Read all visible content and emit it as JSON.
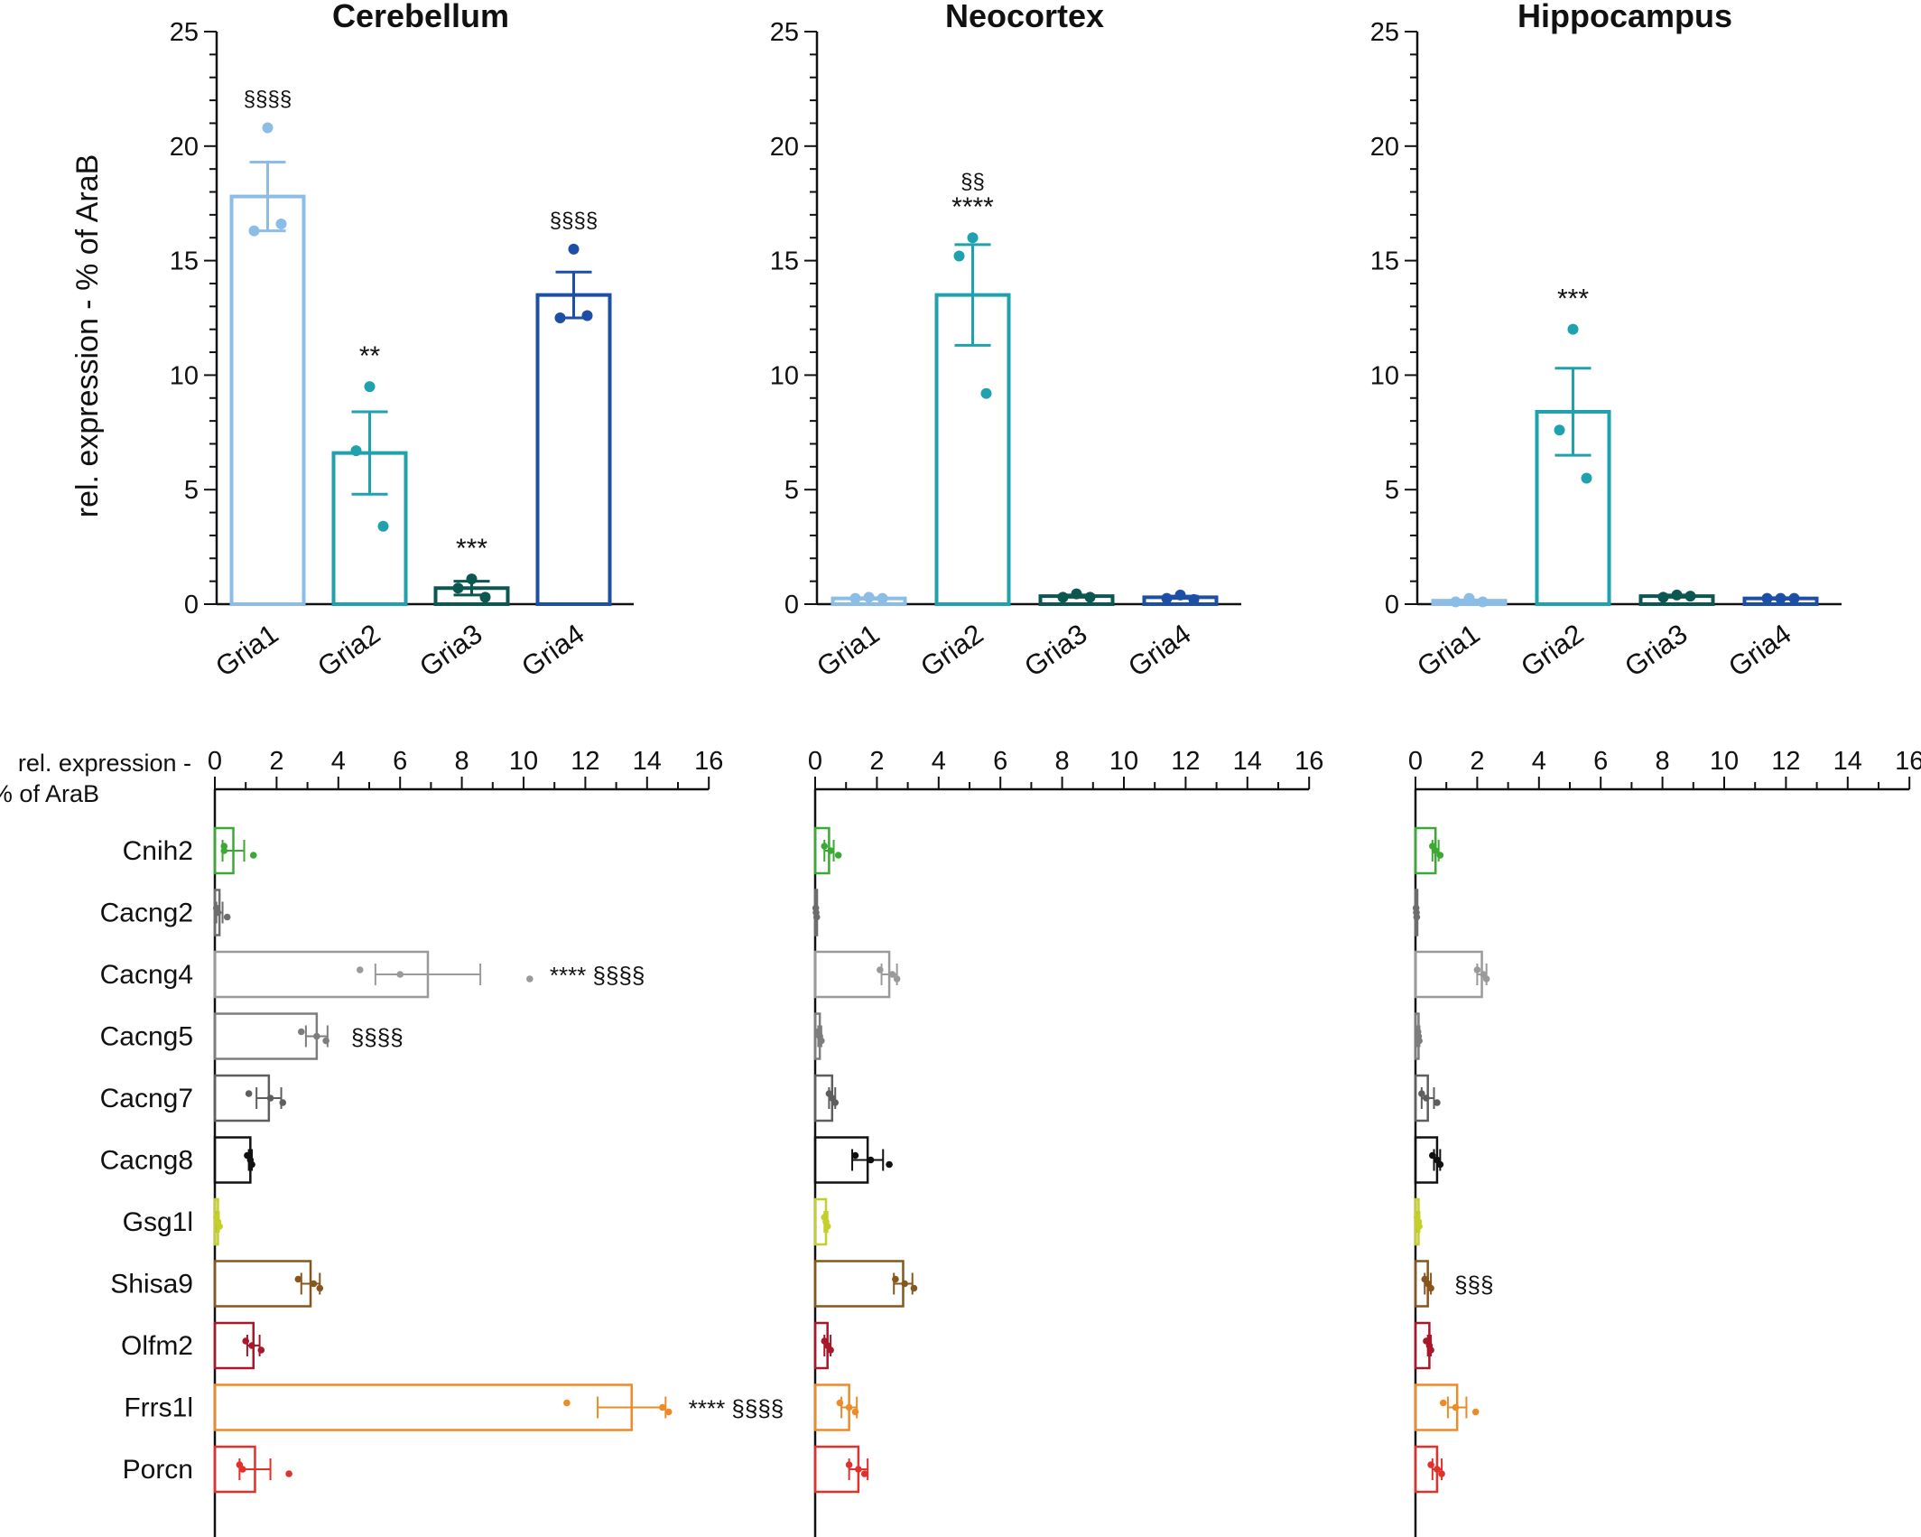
{
  "chart_data": [
    {
      "type": "bar",
      "panel": "top-left",
      "title": "Cerebellum",
      "ylabel": "rel. expression - % of AraB",
      "categories": [
        "Gria1",
        "Gria2",
        "Gria3",
        "Gria4"
      ],
      "ylim": [
        0,
        25
      ],
      "yticks": [
        "0",
        "5",
        "10",
        "15",
        "20",
        "25"
      ],
      "values": [
        17.8,
        6.6,
        0.7,
        13.5
      ],
      "error": [
        1.5,
        1.8,
        0.3,
        1.0
      ],
      "points": [
        [
          20.8,
          16.3,
          16.6
        ],
        [
          9.5,
          6.7,
          3.4
        ],
        [
          1.1,
          0.7,
          0.3
        ],
        [
          15.5,
          12.5,
          12.6
        ]
      ],
      "colors": [
        "#8cbde6",
        "#1fa2ad",
        "#0c5751",
        "#1e4fa6"
      ],
      "annotations": [
        "§§§§",
        "**",
        "***",
        "§§§§"
      ]
    },
    {
      "type": "bar",
      "panel": "top-middle",
      "title": "Neocortex",
      "categories": [
        "Gria1",
        "Gria2",
        "Gria3",
        "Gria4"
      ],
      "ylim": [
        0,
        25
      ],
      "yticks": [
        "0",
        "5",
        "10",
        "15",
        "20",
        "25"
      ],
      "values": [
        0.25,
        13.5,
        0.35,
        0.3
      ],
      "error": [
        0.03,
        2.2,
        0.05,
        0.05
      ],
      "points": [
        [
          0.3,
          0.25,
          0.25
        ],
        [
          16.0,
          15.2,
          9.2
        ],
        [
          0.45,
          0.3,
          0.3
        ],
        [
          0.4,
          0.25,
          0.2
        ]
      ],
      "colors": [
        "#8cbde6",
        "#1fa2ad",
        "#0c5751",
        "#1e4fa6"
      ],
      "annotations": [
        "",
        "§§\n****",
        "",
        ""
      ]
    },
    {
      "type": "bar",
      "panel": "top-right",
      "title": "Hippocampus",
      "categories": [
        "Gria1",
        "Gria2",
        "Gria3",
        "Gria4"
      ],
      "ylim": [
        0,
        25
      ],
      "yticks": [
        "0",
        "5",
        "10",
        "15",
        "20",
        "25"
      ],
      "values": [
        0.15,
        8.4,
        0.35,
        0.25
      ],
      "error": [
        0.03,
        1.9,
        0.05,
        0.03
      ],
      "points": [
        [
          0.25,
          0.1,
          0.1
        ],
        [
          12.0,
          7.6,
          5.5
        ],
        [
          0.4,
          0.3,
          0.35
        ],
        [
          0.25,
          0.25,
          0.25
        ]
      ],
      "colors": [
        "#8cbde6",
        "#1fa2ad",
        "#0c5751",
        "#1e4fa6"
      ],
      "annotations": [
        "",
        "***",
        "",
        ""
      ]
    },
    {
      "type": "bar",
      "orientation": "horizontal",
      "panel": "bottom-left",
      "xlabel": "rel. expression -\n% of AraB",
      "xlim": [
        0,
        16
      ],
      "xticks": [
        "0",
        "2",
        "4",
        "6",
        "8",
        "10",
        "12",
        "14",
        "16"
      ],
      "categories": [
        "Cnih2",
        "Cacng2",
        "Cacng4",
        "Cacng5",
        "Cacng7",
        "Cacng8",
        "Gsg1l",
        "Shisa9",
        "Olfm2",
        "Frrs1l",
        "Porcn"
      ],
      "values": [
        0.6,
        0.15,
        6.9,
        3.3,
        1.75,
        1.15,
        0.1,
        3.1,
        1.25,
        13.5,
        1.3
      ],
      "error": [
        0.35,
        0.1,
        1.7,
        0.35,
        0.4,
        0.05,
        0.03,
        0.3,
        0.2,
        1.1,
        0.5
      ],
      "points": [
        [
          0.3,
          0.3,
          1.25
        ],
        [
          0.05,
          0.1,
          0.4
        ],
        [
          4.7,
          6,
          10.2
        ],
        [
          2.8,
          3.3,
          3.6
        ],
        [
          1.1,
          1.8,
          2.2
        ],
        [
          1.05,
          1.15,
          1.2
        ],
        [
          0.05,
          0.1,
          0.15
        ],
        [
          2.7,
          3.2,
          3.4
        ],
        [
          1.0,
          1.2,
          1.5
        ],
        [
          11.4,
          14.5,
          14.7
        ],
        [
          0.8,
          0.9,
          2.4
        ]
      ],
      "colors": [
        "#3aaa35",
        "#6d6d6d",
        "#9a9a9a",
        "#7d7d7d",
        "#5e5e5e",
        "#111111",
        "#c5cf2a",
        "#86561c",
        "#a8172a",
        "#ee8a28",
        "#e2312c"
      ],
      "annotations": [
        "",
        "",
        "****  §§§§",
        "§§§§",
        "",
        "",
        "",
        "",
        "",
        "**** §§§§",
        ""
      ]
    },
    {
      "type": "bar",
      "orientation": "horizontal",
      "panel": "bottom-middle",
      "xlim": [
        0,
        16
      ],
      "xticks": [
        "0",
        "2",
        "4",
        "6",
        "8",
        "10",
        "12",
        "14",
        "16"
      ],
      "categories": [
        "Cnih2",
        "Cacng2",
        "Cacng4",
        "Cacng5",
        "Cacng7",
        "Cacng8",
        "Gsg1l",
        "Shisa9",
        "Olfm2",
        "Frrs1l",
        "Porcn"
      ],
      "values": [
        0.45,
        0.03,
        2.4,
        0.15,
        0.55,
        1.7,
        0.35,
        2.85,
        0.4,
        1.1,
        1.4
      ],
      "error": [
        0.15,
        0.02,
        0.25,
        0.05,
        0.1,
        0.5,
        0.05,
        0.3,
        0.1,
        0.25,
        0.3
      ],
      "points": [
        [
          0.3,
          0.5,
          0.75
        ],
        [
          0.02,
          0.03,
          0.05
        ],
        [
          2.1,
          2.5,
          2.65
        ],
        [
          0.1,
          0.15,
          0.2
        ],
        [
          0.45,
          0.55,
          0.65
        ],
        [
          1.3,
          1.8,
          2.4
        ],
        [
          0.3,
          0.35,
          0.4
        ],
        [
          2.6,
          2.9,
          3.2
        ],
        [
          0.3,
          0.4,
          0.5
        ],
        [
          0.8,
          1.1,
          1.3
        ],
        [
          1.1,
          1.4,
          1.6
        ]
      ],
      "colors": [
        "#3aaa35",
        "#6d6d6d",
        "#9a9a9a",
        "#7d7d7d",
        "#5e5e5e",
        "#111111",
        "#c5cf2a",
        "#86561c",
        "#a8172a",
        "#ee8a28",
        "#e2312c"
      ],
      "annotations": [
        "",
        "",
        "",
        "",
        "",
        "",
        "",
        "",
        "",
        "",
        ""
      ]
    },
    {
      "type": "bar",
      "orientation": "horizontal",
      "panel": "bottom-right",
      "xlim": [
        0,
        16
      ],
      "xticks": [
        "0",
        "2",
        "4",
        "6",
        "8",
        "10",
        "12",
        "14",
        "16"
      ],
      "categories": [
        "Cnih2",
        "Cacng2",
        "Cacng4",
        "Cacng5",
        "Cacng7",
        "Cacng8",
        "Gsg1l",
        "Shisa9",
        "Olfm2",
        "Frrs1l",
        "Porcn"
      ],
      "values": [
        0.65,
        0.03,
        2.15,
        0.1,
        0.4,
        0.7,
        0.1,
        0.4,
        0.45,
        1.35,
        0.7
      ],
      "error": [
        0.1,
        0.02,
        0.15,
        0.03,
        0.2,
        0.1,
        0.03,
        0.1,
        0.05,
        0.3,
        0.15
      ],
      "points": [
        [
          0.55,
          0.65,
          0.8
        ],
        [
          0.02,
          0.03,
          0.04
        ],
        [
          2.0,
          2.2,
          2.3
        ],
        [
          0.08,
          0.1,
          0.12
        ],
        [
          0.2,
          0.35,
          0.7
        ],
        [
          0.55,
          0.7,
          0.8
        ],
        [
          0.05,
          0.1,
          0.12
        ],
        [
          0.3,
          0.4,
          0.5
        ],
        [
          0.35,
          0.45,
          0.5
        ],
        [
          0.9,
          1.3,
          1.95
        ],
        [
          0.5,
          0.7,
          0.85
        ]
      ],
      "colors": [
        "#3aaa35",
        "#6d6d6d",
        "#9a9a9a",
        "#7d7d7d",
        "#5e5e5e",
        "#111111",
        "#c5cf2a",
        "#86561c",
        "#a8172a",
        "#ee8a28",
        "#e2312c"
      ],
      "annotations": [
        "",
        "",
        "",
        "",
        "",
        "",
        "",
        "§§§",
        "",
        "",
        ""
      ]
    }
  ]
}
